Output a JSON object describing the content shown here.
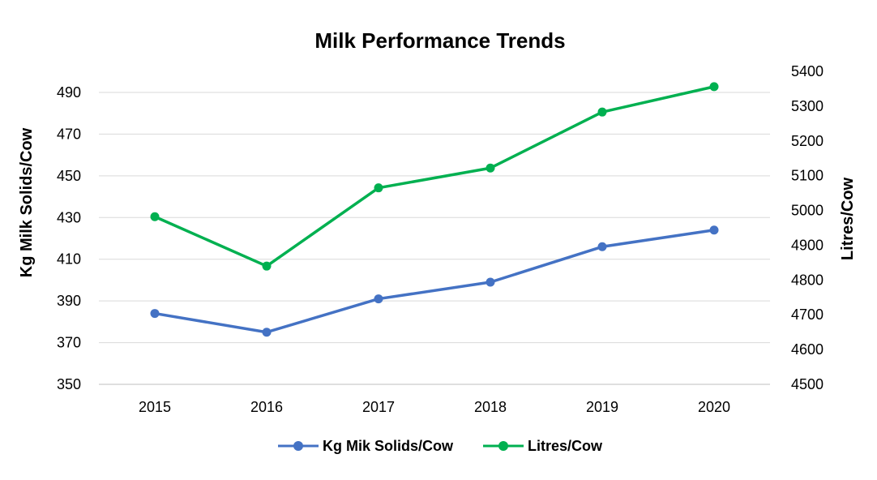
{
  "chart_data": {
    "type": "line",
    "title": "Milk Performance Trends",
    "categories": [
      "2015",
      "2016",
      "2017",
      "2018",
      "2019",
      "2020"
    ],
    "ylabel_left": "Kg Milk Solids/Cow",
    "ylabel_right": "Litres/Cow",
    "ylim_left": [
      350,
      490
    ],
    "yticks_left": [
      "350",
      "370",
      "390",
      "410",
      "430",
      "450",
      "470",
      "490"
    ],
    "ylim_right": [
      4500,
      5400
    ],
    "yticks_right": [
      "4500",
      "4600",
      "4700",
      "4800",
      "4900",
      "5000",
      "5100",
      "5200",
      "5300",
      "5400"
    ],
    "grid": true,
    "legend_position": "bottom",
    "series": [
      {
        "name": "Kg Mik Solids/Cow",
        "axis": "left",
        "color": "#4472C4",
        "values": [
          384,
          375,
          391,
          399,
          416,
          424
        ]
      },
      {
        "name": "Litres/Cow",
        "axis": "right",
        "color": "#00B050",
        "values": [
          4982,
          4840,
          5065,
          5122,
          5283,
          5356
        ]
      }
    ]
  }
}
